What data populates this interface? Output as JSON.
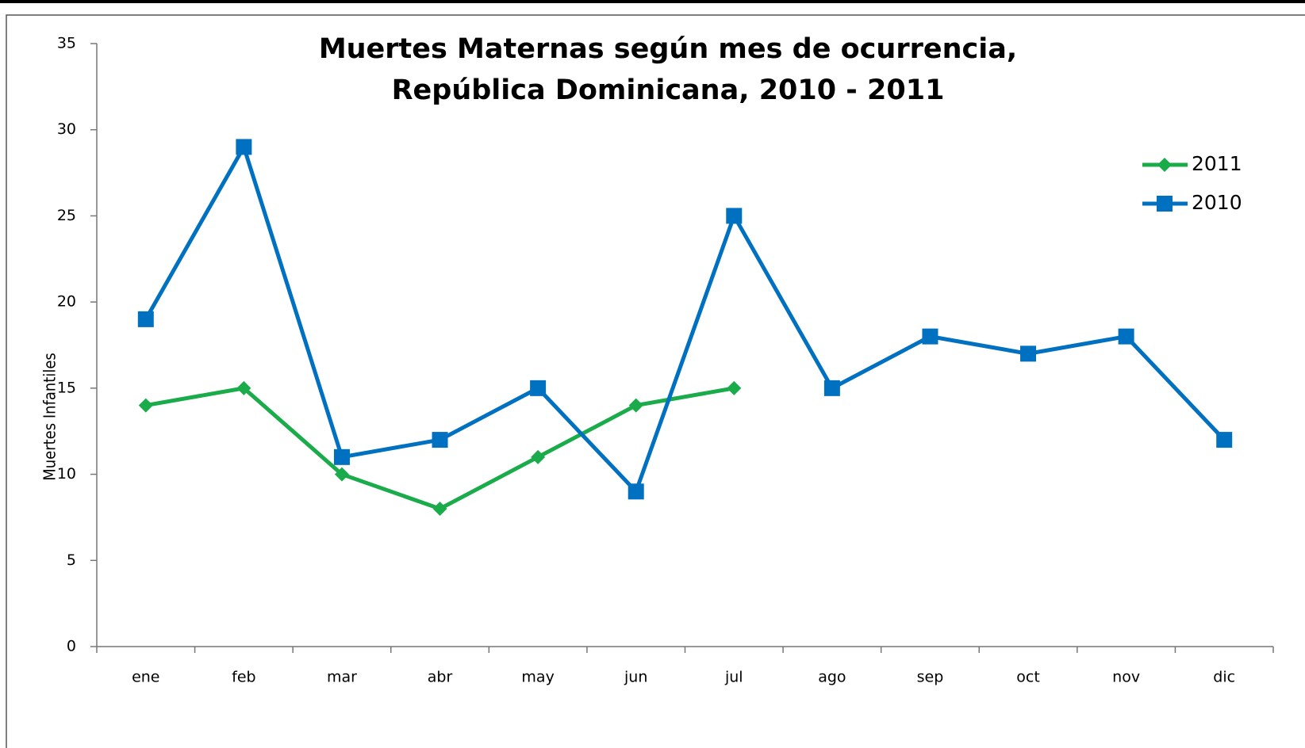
{
  "chart_data": {
    "type": "line",
    "title": [
      "Muertes Maternas según mes de ocurrencia,",
      "República Dominicana, 2010 - 2011"
    ],
    "y_label": "Muertes Infantiles",
    "categories": [
      "ene",
      "feb",
      "mar",
      "abr",
      "may",
      "jun",
      "jul",
      "ago",
      "sep",
      "oct",
      "nov",
      "dic"
    ],
    "series": [
      {
        "name": "2011",
        "color": "#1aab4a",
        "marker": "diamond",
        "values": [
          14,
          15,
          10,
          8,
          11,
          14,
          15,
          null,
          null,
          null,
          null,
          null
        ]
      },
      {
        "name": "2010",
        "color": "#0070c0",
        "marker": "square",
        "values": [
          19,
          29,
          11,
          12,
          15,
          9,
          25,
          15,
          18,
          17,
          18,
          12
        ]
      }
    ],
    "ylim": [
      0,
      35
    ],
    "yticks": [
      0,
      5,
      10,
      15,
      20,
      25,
      30,
      35
    ],
    "grid": false,
    "legend": "top-right"
  }
}
